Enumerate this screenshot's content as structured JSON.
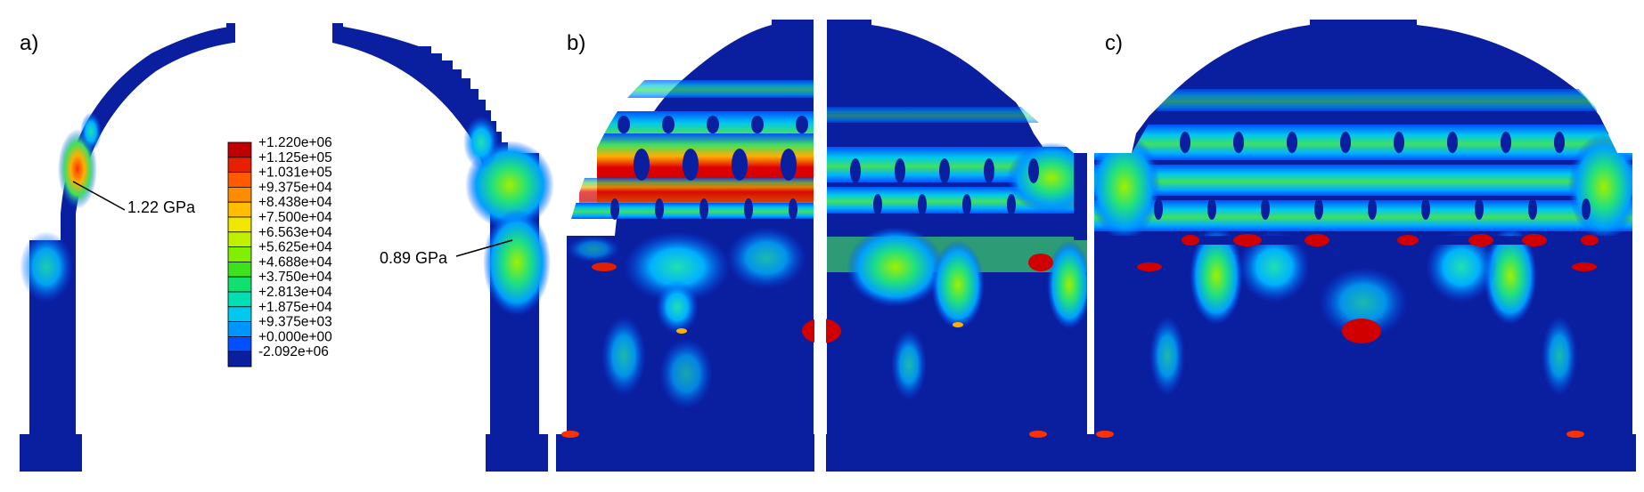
{
  "panels": [
    {
      "label": "a)",
      "annotations": [
        "1.22 GPa",
        "0.89 GPa"
      ]
    },
    {
      "label": "b)"
    },
    {
      "label": "c)"
    }
  ],
  "legend": {
    "entries": [
      {
        "text": "+1.220e+06",
        "color": "#c00000"
      },
      {
        "text": "+1.125e+05",
        "color": "#e62000"
      },
      {
        "text": "+1.031e+05",
        "color": "#ff5a00"
      },
      {
        "text": "+9.375e+04",
        "color": "#ff8c00"
      },
      {
        "text": "+8.438e+04",
        "color": "#ffbe00"
      },
      {
        "text": "+7.500e+04",
        "color": "#f0e600"
      },
      {
        "text": "+6.563e+04",
        "color": "#c0f000"
      },
      {
        "text": "+5.625e+04",
        "color": "#80f000"
      },
      {
        "text": "+4.688e+04",
        "color": "#3ce21e"
      },
      {
        "text": "+3.750e+04",
        "color": "#10e070"
      },
      {
        "text": "+2.813e+04",
        "color": "#00e0b4"
      },
      {
        "text": "+1.875e+04",
        "color": "#00c8ee"
      },
      {
        "text": "+9.375e+03",
        "color": "#0096ff"
      },
      {
        "text": "+0.000e+00",
        "color": "#0050ff"
      },
      {
        "text": "-2.092e+06",
        "color": "#0a1ea0"
      }
    ]
  }
}
